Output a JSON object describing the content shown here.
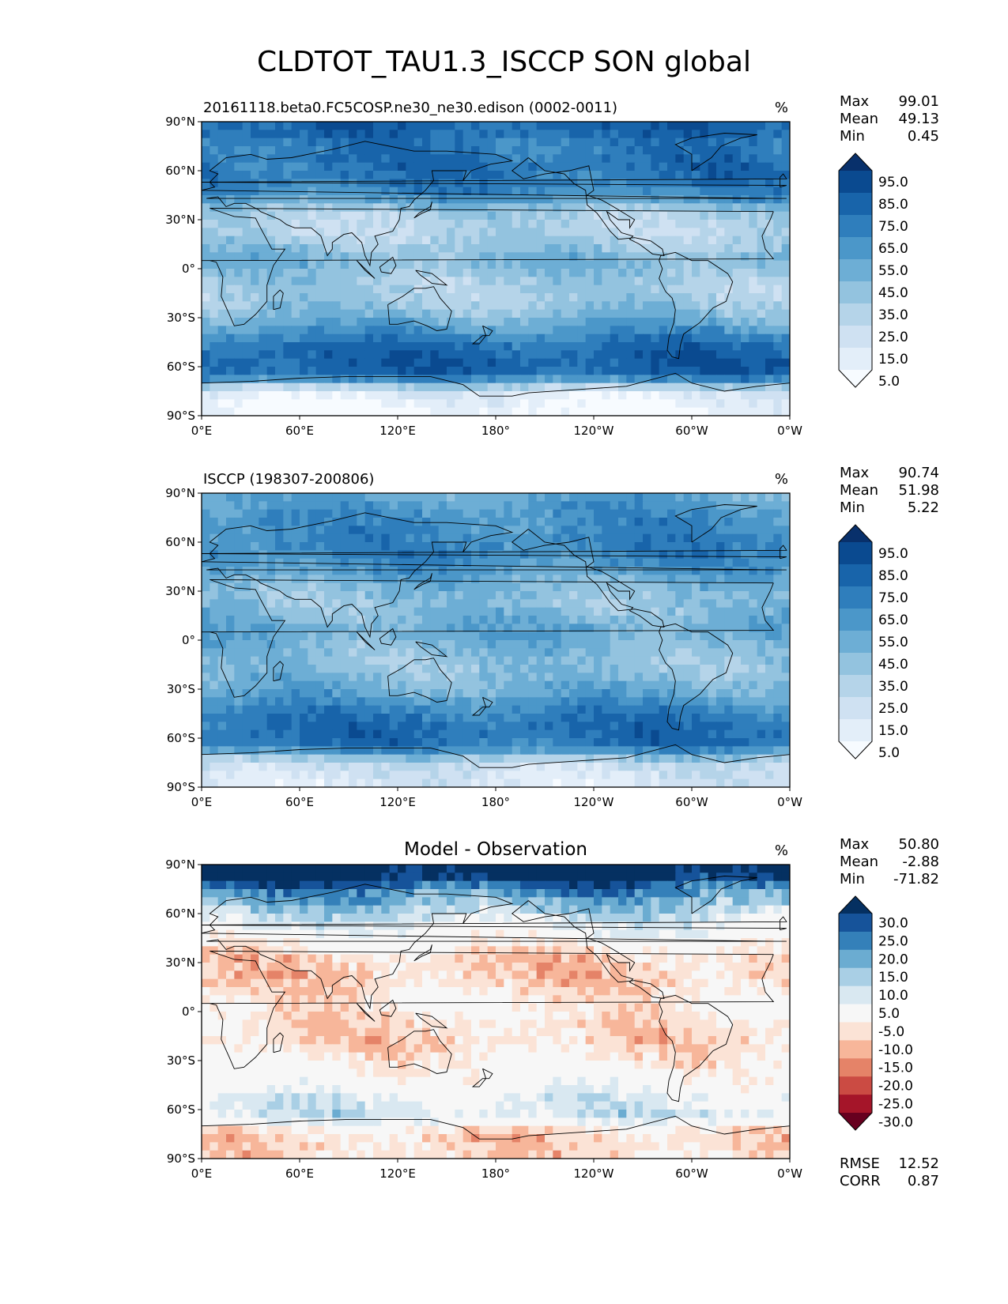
{
  "figure_title": "CLDTOT_TAU1.3_ISCCP SON global",
  "colors": {
    "blues": [
      "#f7fbff",
      "#e3eef9",
      "#cfe1f2",
      "#b5d4e9",
      "#93c3df",
      "#6daed5",
      "#4b97c9",
      "#2f7ebc",
      "#1864aa",
      "#0a4a90",
      "#08306b"
    ],
    "diff": [
      "#67001f",
      "#a51529",
      "#cb4b43",
      "#e58368",
      "#f7b69a",
      "#fbe3d6",
      "#f7f7f7",
      "#d9e8f1",
      "#a9cfe5",
      "#6bacd1",
      "#3480b9",
      "#16539a",
      "#053061"
    ],
    "frame": "#000000",
    "coast": "#000000"
  },
  "chart_data": [
    {
      "type": "heatmap",
      "id": "test",
      "title_left": "20161118.beta0.FC5COSP.ne30_ne30.edison (0002-0011)",
      "title_center": "",
      "units": "%",
      "stats": [
        {
          "label": "Max",
          "value": "99.01"
        },
        {
          "label": "Mean",
          "value": "49.13"
        },
        {
          "label": "Min",
          "value": "0.45"
        }
      ],
      "colorbar_ticks": [
        "95.0",
        "85.0",
        "75.0",
        "65.0",
        "55.0",
        "45.0",
        "35.0",
        "25.0",
        "15.0",
        "5.0"
      ],
      "colormap": "blues",
      "x_ticks": [
        "0°E",
        "60°E",
        "120°E",
        "180°",
        "120°W",
        "60°W",
        "0°W"
      ],
      "y_ticks": [
        "90°N",
        "60°N",
        "30°N",
        "0°",
        "30°S",
        "60°S",
        "90°S"
      ],
      "xlim": [
        0,
        360
      ],
      "ylim": [
        -90,
        90
      ],
      "zonal_profile": [
        {
          "lat": 85,
          "v": 85
        },
        {
          "lat": 75,
          "v": 75
        },
        {
          "lat": 65,
          "v": 80
        },
        {
          "lat": 55,
          "v": 78
        },
        {
          "lat": 45,
          "v": 68
        },
        {
          "lat": 35,
          "v": 40
        },
        {
          "lat": 25,
          "v": 32
        },
        {
          "lat": 15,
          "v": 40
        },
        {
          "lat": 5,
          "v": 52
        },
        {
          "lat": -5,
          "v": 42
        },
        {
          "lat": -15,
          "v": 38
        },
        {
          "lat": -25,
          "v": 45
        },
        {
          "lat": -35,
          "v": 60
        },
        {
          "lat": -45,
          "v": 78
        },
        {
          "lat": -55,
          "v": 88
        },
        {
          "lat": -65,
          "v": 85
        },
        {
          "lat": -75,
          "v": 20
        },
        {
          "lat": -85,
          "v": 8
        }
      ]
    },
    {
      "type": "heatmap",
      "id": "ref",
      "title_left": "ISCCP (198307-200806)",
      "title_center": "",
      "units": "%",
      "stats": [
        {
          "label": "Max",
          "value": "90.74"
        },
        {
          "label": "Mean",
          "value": "51.98"
        },
        {
          "label": "Min",
          "value": "5.22"
        }
      ],
      "colorbar_ticks": [
        "95.0",
        "85.0",
        "75.0",
        "65.0",
        "55.0",
        "45.0",
        "35.0",
        "25.0",
        "15.0",
        "5.0"
      ],
      "colormap": "blues",
      "x_ticks": [
        "0°E",
        "60°E",
        "120°E",
        "180°",
        "120°W",
        "60°W",
        "0°W"
      ],
      "y_ticks": [
        "90°N",
        "60°N",
        "30°N",
        "0°",
        "30°S",
        "60°S",
        "90°S"
      ],
      "xlim": [
        0,
        360
      ],
      "ylim": [
        -90,
        90
      ],
      "zonal_profile": [
        {
          "lat": 85,
          "v": 60
        },
        {
          "lat": 75,
          "v": 68
        },
        {
          "lat": 65,
          "v": 70
        },
        {
          "lat": 55,
          "v": 72
        },
        {
          "lat": 45,
          "v": 66
        },
        {
          "lat": 35,
          "v": 52
        },
        {
          "lat": 25,
          "v": 45
        },
        {
          "lat": 15,
          "v": 50
        },
        {
          "lat": 5,
          "v": 58
        },
        {
          "lat": -5,
          "v": 50
        },
        {
          "lat": -15,
          "v": 45
        },
        {
          "lat": -25,
          "v": 50
        },
        {
          "lat": -35,
          "v": 62
        },
        {
          "lat": -45,
          "v": 75
        },
        {
          "lat": -55,
          "v": 82
        },
        {
          "lat": -65,
          "v": 78
        },
        {
          "lat": -75,
          "v": 30
        },
        {
          "lat": -85,
          "v": 20
        }
      ]
    },
    {
      "type": "heatmap",
      "id": "diff",
      "title_left": "",
      "title_center": "Model - Observation",
      "units": "%",
      "stats": [
        {
          "label": "Max",
          "value": "50.80"
        },
        {
          "label": "Mean",
          "value": "-2.88"
        },
        {
          "label": "Min",
          "value": "-71.82"
        }
      ],
      "bottom_stats": [
        {
          "label": "RMSE",
          "value": "12.52"
        },
        {
          "label": "CORR",
          "value": "0.87"
        }
      ],
      "colorbar_ticks": [
        "30.0",
        "25.0",
        "20.0",
        "15.0",
        "10.0",
        "5.0",
        "-5.0",
        "-10.0",
        "-15.0",
        "-20.0",
        "-25.0",
        "-30.0"
      ],
      "colormap": "diff",
      "x_ticks": [
        "0°E",
        "60°E",
        "120°E",
        "180°",
        "120°W",
        "60°W",
        "0°W"
      ],
      "y_ticks": [
        "90°N",
        "60°N",
        "30°N",
        "0°",
        "30°S",
        "60°S",
        "90°S"
      ],
      "xlim": [
        0,
        360
      ],
      "ylim": [
        -90,
        90
      ],
      "zonal_profile": [
        {
          "lat": 85,
          "v": 35
        },
        {
          "lat": 75,
          "v": 22
        },
        {
          "lat": 65,
          "v": 14
        },
        {
          "lat": 55,
          "v": 6
        },
        {
          "lat": 45,
          "v": 0
        },
        {
          "lat": 35,
          "v": -8
        },
        {
          "lat": 25,
          "v": -10
        },
        {
          "lat": 15,
          "v": -8
        },
        {
          "lat": 5,
          "v": -4
        },
        {
          "lat": -5,
          "v": -6
        },
        {
          "lat": -15,
          "v": -9
        },
        {
          "lat": -25,
          "v": -6
        },
        {
          "lat": -35,
          "v": -2
        },
        {
          "lat": -45,
          "v": 0
        },
        {
          "lat": -55,
          "v": 6
        },
        {
          "lat": -65,
          "v": 8
        },
        {
          "lat": -75,
          "v": -10
        },
        {
          "lat": -85,
          "v": -8
        }
      ]
    }
  ]
}
